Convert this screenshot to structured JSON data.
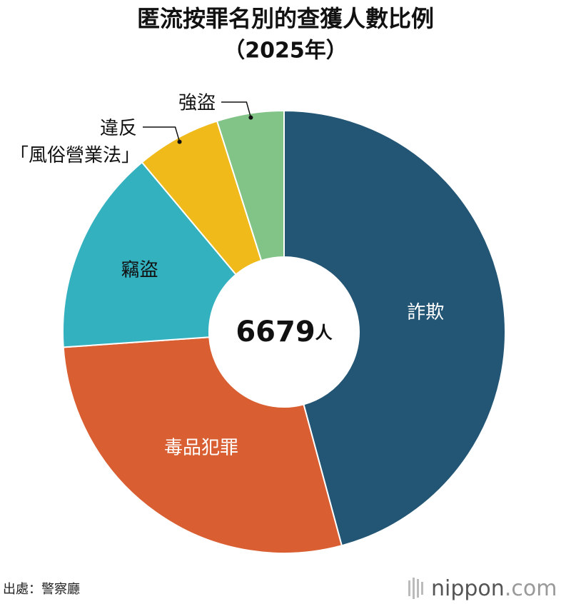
{
  "chart_data": {
    "type": "donut",
    "title": "匿流按罪名別的查獲人數比例",
    "subtitle": "（2025年）",
    "categories": [
      "詐欺",
      "毒品犯罪",
      "竊盜",
      "違反「風俗營業法」",
      "強盜"
    ],
    "values": [
      45.8,
      28.1,
      15.0,
      6.2,
      4.9
    ],
    "colors": [
      "#235574",
      "#d95f32",
      "#33b1bf",
      "#f0bb1a",
      "#82c487"
    ],
    "center_value": 6679,
    "center_unit": "人",
    "source": "出處：警察廳",
    "logo": "nippon",
    "logo_suffix": ".com"
  }
}
